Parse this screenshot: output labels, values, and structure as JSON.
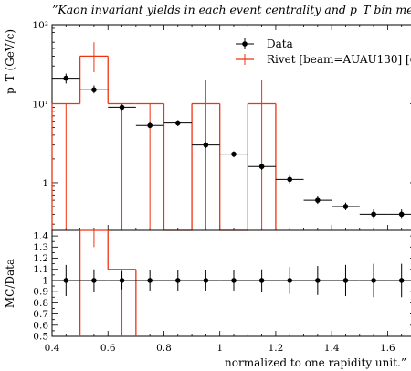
{
  "chart_data": [
    {
      "type": "line",
      "title": "”Kaon invariant yields in each event centrality and p_T bin measure",
      "ylabel": "p_T (GeV/c)",
      "yscale": "log",
      "ylim": [
        0.25,
        100
      ],
      "xlim": [
        0.4,
        1.7
      ],
      "y_tick_labels": [
        "10²",
        "10¹",
        "1"
      ],
      "y_tick_values": [
        100,
        10,
        1
      ],
      "legend": {
        "placement": "top-right",
        "entries": [
          "Data",
          "Rivet [beam=AUAU130] [c"
        ]
      },
      "series": [
        {
          "name": "Data",
          "style": "points-with-errors",
          "color": "#000000",
          "points": [
            {
              "x": 0.45,
              "y": 21,
              "xerr": 0.05,
              "ylo": 18,
              "yhi": 24
            },
            {
              "x": 0.55,
              "y": 15,
              "xerr": 0.05,
              "ylo": 13.5,
              "yhi": 17
            },
            {
              "x": 0.65,
              "y": 9,
              "xerr": 0.05,
              "ylo": 8.3,
              "yhi": 9.7
            },
            {
              "x": 0.75,
              "y": 5.3,
              "xerr": 0.05,
              "ylo": 4.9,
              "yhi": 5.8
            },
            {
              "x": 0.85,
              "y": 5.7,
              "xerr": 0.05,
              "ylo": 5.2,
              "yhi": 6.2
            },
            {
              "x": 0.95,
              "y": 3.0,
              "xerr": 0.05,
              "ylo": 2.75,
              "yhi": 3.25
            },
            {
              "x": 1.05,
              "y": 2.3,
              "xerr": 0.05,
              "ylo": 2.1,
              "yhi": 2.5
            },
            {
              "x": 1.15,
              "y": 1.6,
              "xerr": 0.05,
              "ylo": 1.45,
              "yhi": 1.75
            },
            {
              "x": 1.25,
              "y": 1.1,
              "xerr": 0.05,
              "ylo": 0.98,
              "yhi": 1.25
            },
            {
              "x": 1.35,
              "y": 0.6,
              "xerr": 0.05,
              "ylo": 0.54,
              "yhi": 0.67
            },
            {
              "x": 1.45,
              "y": 0.5,
              "xerr": 0.05,
              "ylo": 0.45,
              "yhi": 0.56
            },
            {
              "x": 1.55,
              "y": 0.4,
              "xerr": 0.05,
              "ylo": 0.35,
              "yhi": 0.46
            },
            {
              "x": 1.65,
              "y": 0.4,
              "xerr": 0.05,
              "ylo": 0.35,
              "yhi": 0.46
            }
          ]
        },
        {
          "name": "Rivet [beam=AUAU130] [c",
          "style": "histogram",
          "color": "#ee3311",
          "bins": [
            {
              "xlo": 0.4,
              "xhi": 0.5,
              "y": 10,
              "ylo": 0.25,
              "yhi": 10
            },
            {
              "xlo": 0.5,
              "xhi": 0.6,
              "y": 40,
              "ylo": 25,
              "yhi": 60
            },
            {
              "xlo": 0.6,
              "xhi": 0.7,
              "y": 10,
              "ylo": 0.25,
              "yhi": 10
            },
            {
              "xlo": 0.7,
              "xhi": 0.8,
              "y": 10,
              "ylo": 0.25,
              "yhi": 10
            },
            {
              "xlo": 0.8,
              "xhi": 0.9,
              "y": 0.25,
              "ylo": 0.25,
              "yhi": 0.25
            },
            {
              "xlo": 0.9,
              "xhi": 1.0,
              "y": 10,
              "ylo": 0.25,
              "yhi": 20
            },
            {
              "xlo": 1.0,
              "xhi": 1.1,
              "y": 0.25,
              "ylo": 0.25,
              "yhi": 0.25
            },
            {
              "xlo": 1.1,
              "xhi": 1.2,
              "y": 10,
              "ylo": 0.25,
              "yhi": 20
            }
          ]
        }
      ]
    },
    {
      "type": "line",
      "ylabel": "MC/Data",
      "xlabel": "normalized to one rapidity unit.”",
      "ylim": [
        0.5,
        1.45
      ],
      "xlim": [
        0.4,
        1.7
      ],
      "y_tick_labels": [
        "0.5",
        "0.6",
        "0.7",
        "0.8",
        "0.9",
        "1",
        "1.1",
        "1.2",
        "1.3",
        "1.4"
      ],
      "y_tick_values": [
        0.5,
        0.6,
        0.7,
        0.8,
        0.9,
        1.0,
        1.1,
        1.2,
        1.3,
        1.4
      ],
      "x_tick_labels": [
        "0.4",
        "0.6",
        "0.8",
        "1",
        "1.2",
        "1.4",
        "1.6"
      ],
      "x_tick_values": [
        0.4,
        0.6,
        0.8,
        1.0,
        1.2,
        1.4,
        1.6
      ],
      "series": [
        {
          "name": "Data",
          "style": "points-with-errors",
          "color": "#000000",
          "points": [
            {
              "x": 0.45,
              "y": 1,
              "xerr": 0.05,
              "ylo": 0.86,
              "yhi": 1.14
            },
            {
              "x": 0.55,
              "y": 1,
              "xerr": 0.05,
              "ylo": 0.9,
              "yhi": 1.1
            },
            {
              "x": 0.65,
              "y": 1,
              "xerr": 0.05,
              "ylo": 0.92,
              "yhi": 1.08
            },
            {
              "x": 0.75,
              "y": 1,
              "xerr": 0.05,
              "ylo": 0.91,
              "yhi": 1.09
            },
            {
              "x": 0.85,
              "y": 1,
              "xerr": 0.05,
              "ylo": 0.91,
              "yhi": 1.09
            },
            {
              "x": 0.95,
              "y": 1,
              "xerr": 0.05,
              "ylo": 0.91,
              "yhi": 1.09
            },
            {
              "x": 1.05,
              "y": 1,
              "xerr": 0.05,
              "ylo": 0.91,
              "yhi": 1.09
            },
            {
              "x": 1.15,
              "y": 1,
              "xerr": 0.05,
              "ylo": 0.9,
              "yhi": 1.1
            },
            {
              "x": 1.25,
              "y": 1,
              "xerr": 0.05,
              "ylo": 0.88,
              "yhi": 1.12
            },
            {
              "x": 1.35,
              "y": 1,
              "xerr": 0.05,
              "ylo": 0.87,
              "yhi": 1.13
            },
            {
              "x": 1.45,
              "y": 1,
              "xerr": 0.05,
              "ylo": 0.86,
              "yhi": 1.14
            },
            {
              "x": 1.55,
              "y": 1,
              "xerr": 0.05,
              "ylo": 0.85,
              "yhi": 1.15
            },
            {
              "x": 1.65,
              "y": 1,
              "xerr": 0.05,
              "ylo": 0.85,
              "yhi": 1.15
            }
          ]
        },
        {
          "name": "Rivet [beam=AUAU130] [c",
          "style": "histogram",
          "color": "#ee3311",
          "bins": [
            {
              "xlo": 0.4,
              "xhi": 0.5,
              "y": 0.5,
              "ylo": 0.5,
              "yhi": 0.5
            },
            {
              "xlo": 0.5,
              "xhi": 0.6,
              "y": 1.45,
              "ylo": 1.3,
              "yhi": 1.45
            },
            {
              "xlo": 0.6,
              "xhi": 0.7,
              "y": 1.1,
              "ylo": 0.5,
              "yhi": 1.1
            },
            {
              "xlo": 0.7,
              "xhi": 0.8,
              "y": 0.5,
              "ylo": 0.5,
              "yhi": 0.5
            },
            {
              "xlo": 0.8,
              "xhi": 0.9,
              "y": 0.5,
              "ylo": 0.5,
              "yhi": 0.5
            },
            {
              "xlo": 0.9,
              "xhi": 1.0,
              "y": 0.5,
              "ylo": 0.5,
              "yhi": 0.5
            },
            {
              "xlo": 1.0,
              "xhi": 1.1,
              "y": 0.5,
              "ylo": 0.5,
              "yhi": 0.5
            },
            {
              "xlo": 1.1,
              "xhi": 1.2,
              "y": 0.5,
              "ylo": 0.5,
              "yhi": 0.5
            }
          ]
        }
      ]
    }
  ]
}
